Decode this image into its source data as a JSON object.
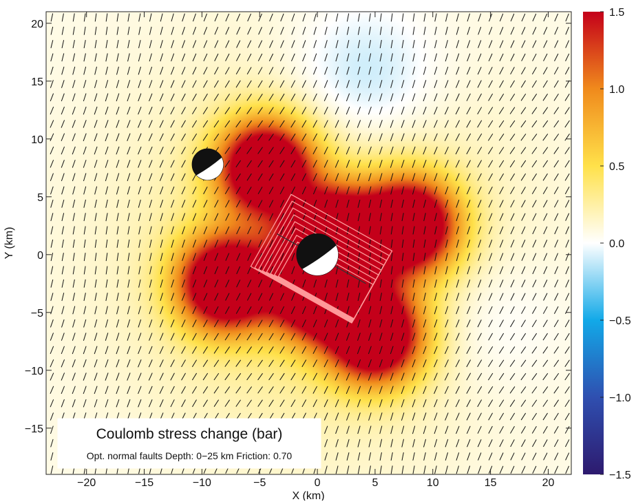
{
  "chart_data": {
    "type": "heatmap",
    "title": "Coulomb stress change (bar)",
    "subtitle": "Opt. normal faults  Depth: 0−25 km  Friction: 0.70",
    "xlabel": "X (km)",
    "ylabel": "Y (km)",
    "xlim": [
      -23.5,
      22
    ],
    "ylim": [
      -19,
      21
    ],
    "x_ticks": [
      -20,
      -15,
      -10,
      -5,
      0,
      5,
      10,
      15,
      20
    ],
    "x_tick_labels": [
      "−20",
      "−15",
      "−10",
      "−5",
      "0",
      "5",
      "10",
      "15",
      "20"
    ],
    "y_ticks": [
      -15,
      -10,
      -5,
      0,
      5,
      10,
      15,
      20
    ],
    "y_tick_labels": [
      "−15",
      "−10",
      "−5",
      "0",
      "5",
      "10",
      "15",
      "20"
    ],
    "colorbar": {
      "min": -1.5,
      "max": 1.5,
      "ticks": [
        1.5,
        1.0,
        0.5,
        0.0,
        -0.5,
        -1.0,
        -1.5
      ],
      "tick_labels": [
        "1.5",
        "1.0",
        "0.5",
        "0.0",
        "−0.5",
        "−1.0",
        "−1.5"
      ],
      "colors": [
        "#2d1a6e",
        "#2f4fb0",
        "#12a9e8",
        "#ffffff",
        "#ffe14a",
        "#f08a1c",
        "#c4001a"
      ]
    },
    "stress_lobes": [
      {
        "x": -4.5,
        "y": 7.5,
        "value": 1.5
      },
      {
        "x": 8,
        "y": 2.5,
        "value": 1.5
      },
      {
        "x": -8,
        "y": -2.5,
        "value": 1.5
      },
      {
        "x": 5,
        "y": -7,
        "value": 1.5
      },
      {
        "x": 0,
        "y": -3,
        "value": 1.5
      },
      {
        "x": 1.5,
        "y": 1.5,
        "value": 1.5
      },
      {
        "x": 4,
        "y": 15,
        "value": -0.2
      },
      {
        "x": 15,
        "y": -5.5,
        "value": -0.1
      }
    ],
    "fault": {
      "x1": -3.5,
      "y1": 1.8,
      "x2": 4.2,
      "y2": -2.5
    },
    "mechanisms": [
      {
        "x": -9.5,
        "y": 7.8,
        "r_km": 1.35
      },
      {
        "x": 0,
        "y": 0,
        "r_km": 1.8
      }
    ]
  }
}
